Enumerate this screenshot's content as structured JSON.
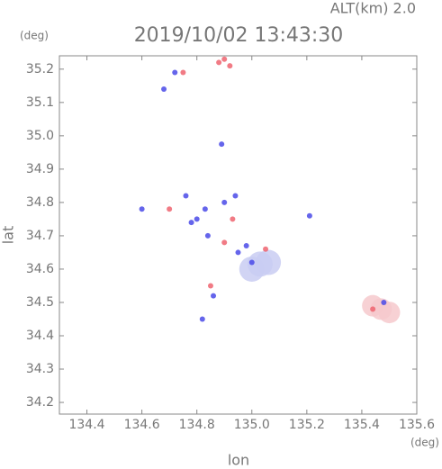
{
  "chart_data": {
    "type": "scatter",
    "title": "2019/10/02 13:43:30",
    "subtitle": "ALT(km) 2.0",
    "y_unit": "(deg)",
    "x_unit": "(deg)",
    "xlabel": "lon",
    "ylabel": "lat",
    "xlim": [
      134.3,
      135.6
    ],
    "ylim": [
      34.165,
      35.24
    ],
    "xticks": [
      134.4,
      134.6,
      134.8,
      {
        "value": 135,
        "label": "135.0"
      },
      135.2,
      135.4,
      135.6
    ],
    "yticks": [
      34.2,
      34.3,
      34.4,
      34.5,
      34.6,
      34.7,
      34.8,
      34.9,
      {
        "value": 35,
        "label": "35.0"
      },
      35.1,
      35.2
    ],
    "series": [
      {
        "color": "#c9cdf2",
        "x": [
          135.03,
          135.0,
          135.06
        ],
        "values": [
          34.615,
          34.6,
          34.62
        ]
      },
      {
        "color": "#f6c9cc",
        "x": [
          135.47,
          135.44,
          135.5
        ],
        "values": [
          34.48,
          34.49,
          34.47
        ]
      },
      {
        "color": "#4a4ae8",
        "x": [
          134.72,
          134.68,
          134.6,
          134.76,
          134.78,
          134.83,
          134.84,
          134.94,
          135.21,
          134.95,
          135.0,
          134.86,
          134.82,
          134.89,
          134.9,
          135.48,
          134.8,
          134.98
        ],
        "values": [
          35.19,
          35.14,
          34.78,
          34.82,
          34.74,
          34.78,
          34.7,
          34.82,
          34.76,
          34.65,
          34.62,
          34.52,
          34.45,
          34.975,
          34.8,
          34.5,
          34.75,
          34.67
        ]
      },
      {
        "color": "#ee6470",
        "x": [
          134.88,
          134.92,
          134.75,
          134.93,
          134.9,
          134.85,
          135.05,
          135.44,
          134.9,
          134.7
        ],
        "values": [
          35.22,
          35.21,
          35.19,
          34.75,
          34.68,
          34.55,
          34.66,
          34.48,
          35.23,
          34.78
        ]
      }
    ]
  }
}
